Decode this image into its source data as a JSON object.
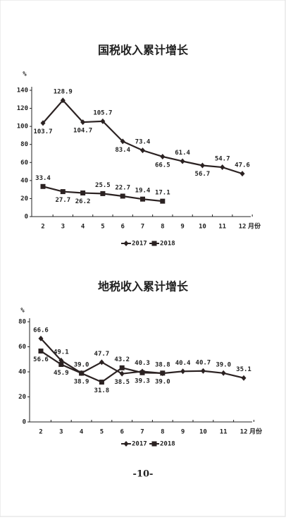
{
  "chart_data": [
    {
      "type": "line",
      "title": "国税收入累计增长",
      "y_label": "%",
      "x_label": "月份",
      "categories": [
        "2",
        "3",
        "4",
        "5",
        "6",
        "7",
        "8",
        "9",
        "10",
        "11",
        "12"
      ],
      "series": [
        {
          "name": "2017",
          "color": "#2b2222",
          "marker": "diamond",
          "values": [
            103.7,
            128.9,
            104.7,
            105.7,
            83.4,
            73.4,
            66.5,
            61.4,
            56.7,
            54.7,
            47.6
          ],
          "value_labels": [
            "103.7",
            "128.9",
            "104.7",
            "105.7",
            "83.4",
            "73.4",
            "66.5",
            "61.4",
            "56.7",
            "54.7",
            "47.6"
          ]
        },
        {
          "name": "2018",
          "color": "#2b2222",
          "marker": "square",
          "values": [
            33.4,
            27.7,
            26.2,
            25.5,
            22.7,
            19.4,
            17.1,
            null,
            null,
            null,
            null
          ],
          "value_labels": [
            "33.4",
            "27.7",
            "26.2",
            "25.5",
            "22.7",
            "19.4",
            "17.1",
            null,
            null,
            null,
            null
          ]
        }
      ],
      "ylim": [
        0,
        140
      ],
      "yticks": [
        0,
        20,
        40,
        60,
        80,
        100,
        120,
        140
      ],
      "grid": false,
      "legend": "bottom"
    },
    {
      "type": "line",
      "title": "地税收入累计增长",
      "y_label": "%",
      "x_label": "月份",
      "categories": [
        "2",
        "3",
        "4",
        "5",
        "6",
        "7",
        "8",
        "9",
        "10",
        "11",
        "12"
      ],
      "series": [
        {
          "name": "2017",
          "color": "#2b2222",
          "marker": "diamond",
          "values": [
            66.6,
            49.1,
            39.0,
            47.7,
            38.5,
            40.3,
            38.8,
            40.4,
            40.7,
            39.0,
            35.1
          ],
          "value_labels": [
            "66.6",
            "49.1",
            "39.0",
            "47.7",
            "38.5",
            "40.3",
            "38.8",
            "40.4",
            "40.7",
            "39.0",
            "35.1"
          ]
        },
        {
          "name": "2018",
          "color": "#2b2222",
          "marker": "square",
          "values": [
            56.6,
            45.9,
            38.9,
            31.8,
            43.2,
            39.3,
            39.0,
            null,
            null,
            null,
            null
          ],
          "value_labels": [
            "56.6",
            "45.9",
            "38.9",
            "31.8",
            "43.2",
            "39.3",
            "39.0",
            null,
            null,
            null,
            null
          ]
        }
      ],
      "ylim": [
        0,
        80
      ],
      "yticks": [
        0,
        20,
        40,
        60,
        80
      ],
      "grid": false,
      "legend": "bottom"
    }
  ],
  "page_number": "-10-"
}
